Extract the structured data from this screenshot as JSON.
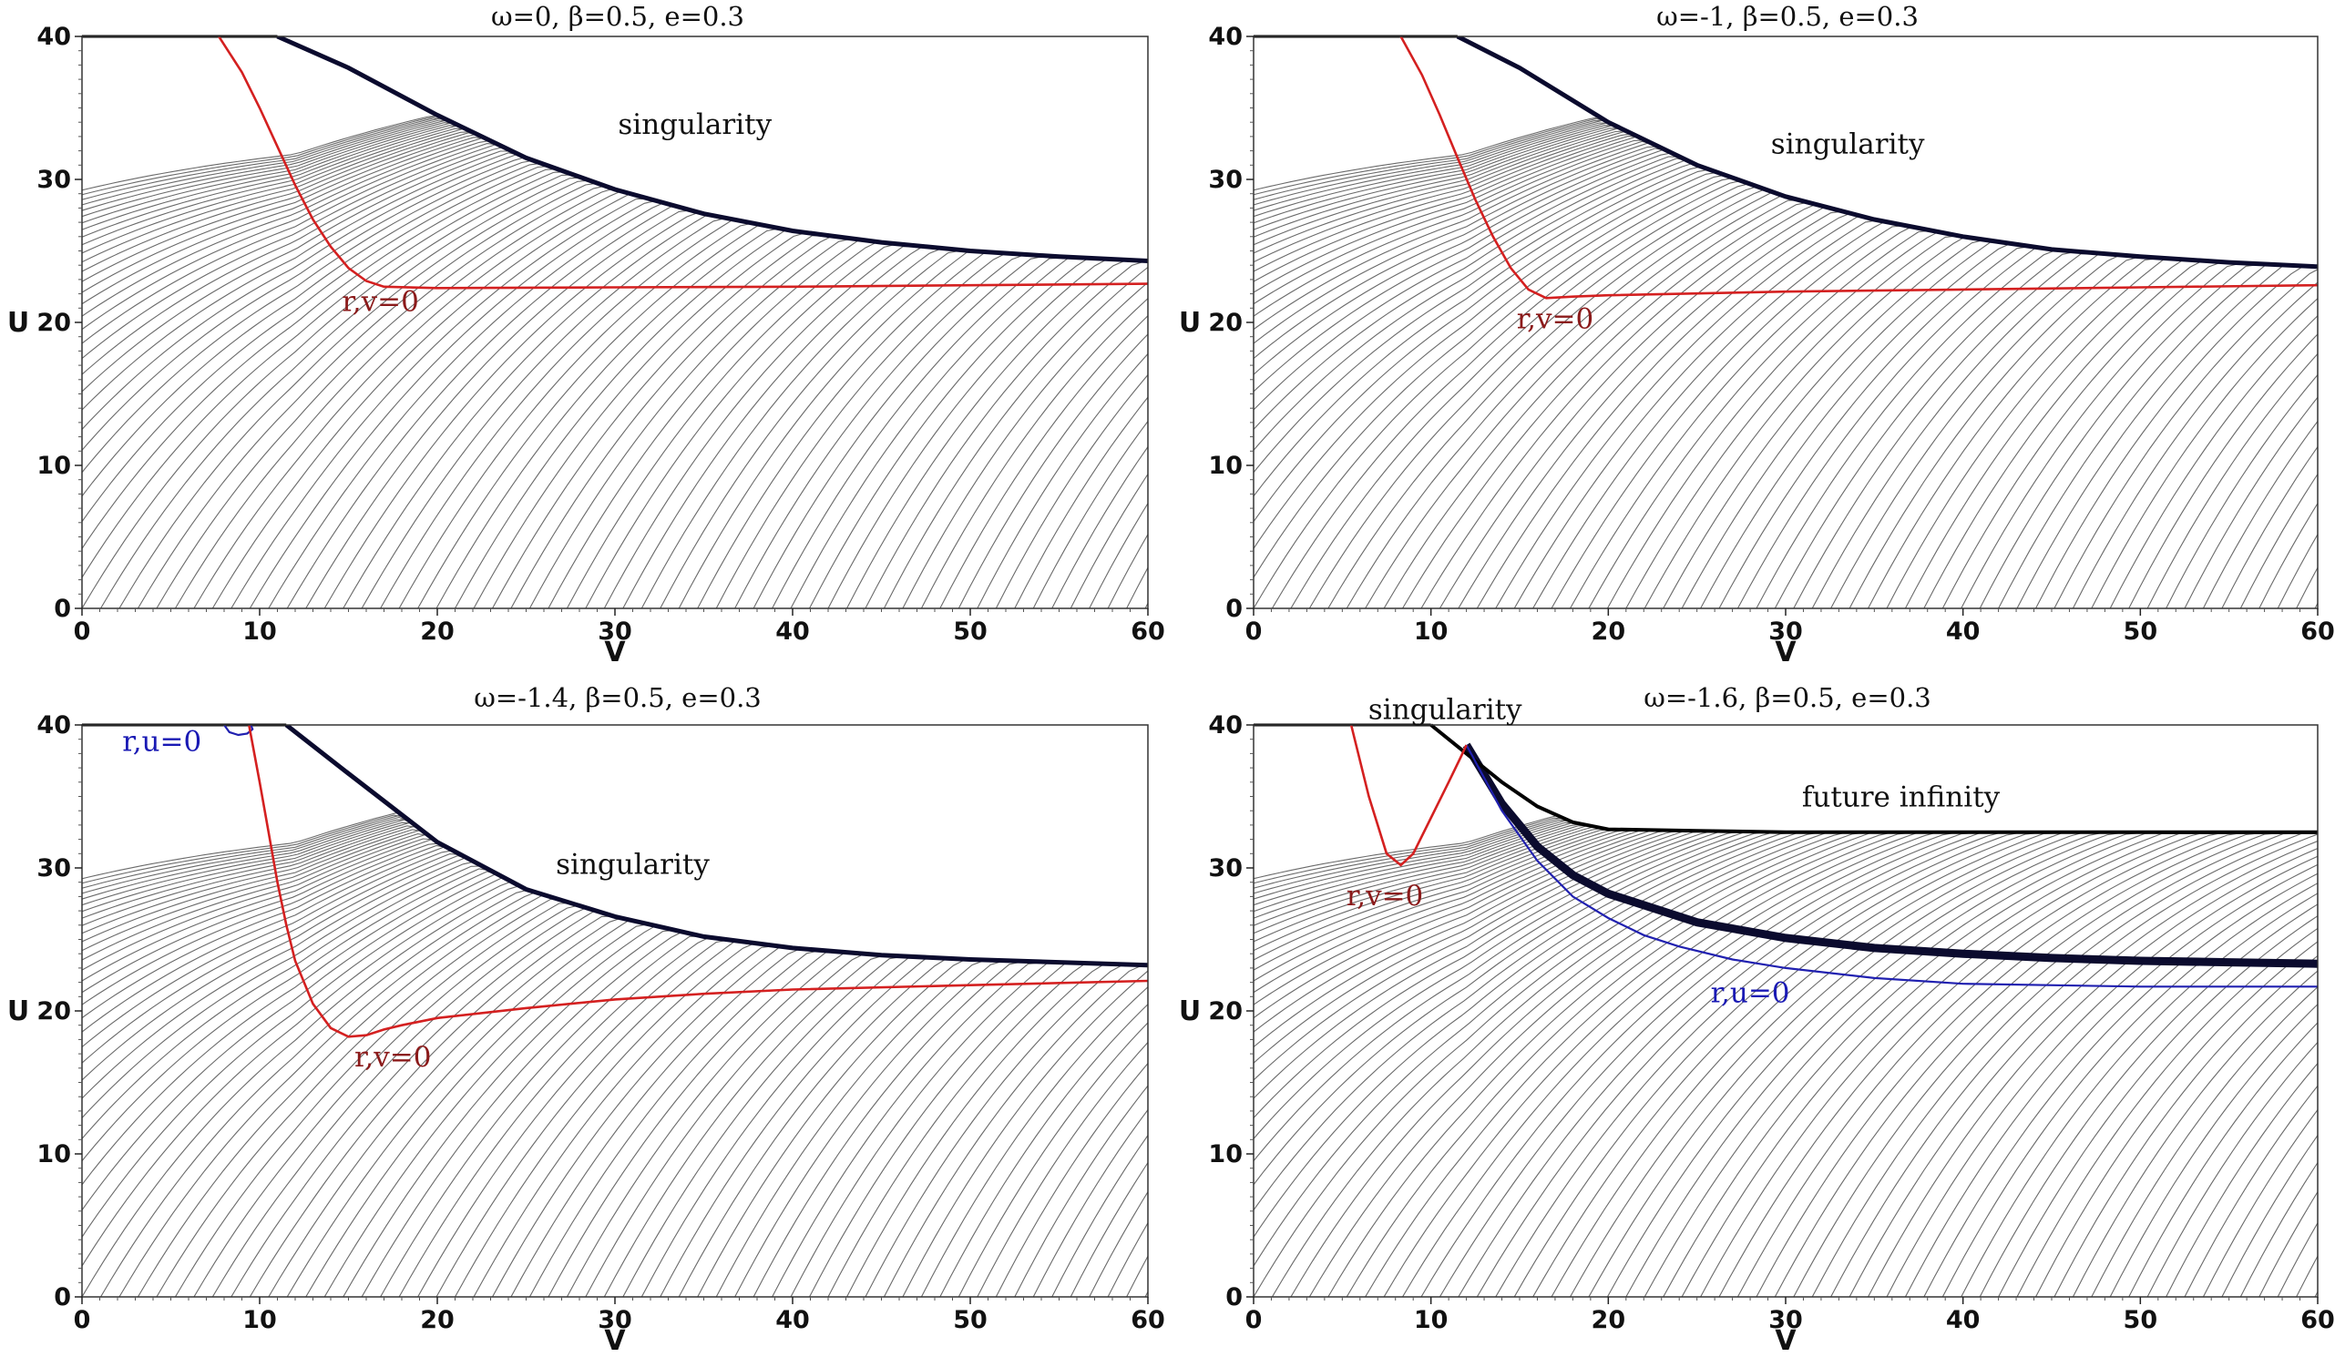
{
  "chart_data": [
    {
      "type": "line",
      "title": "ω=0,   β=0.5,   e=0.3",
      "omega": 0,
      "beta": 0.5,
      "e": 0.3,
      "xlabel": "V",
      "ylabel": "U",
      "xlim": [
        0,
        60
      ],
      "ylim": [
        0,
        40
      ],
      "xticks": [
        0,
        10,
        20,
        30,
        40,
        50,
        60
      ],
      "yticks": [
        0,
        10,
        20,
        30,
        40
      ],
      "singularity": {
        "x": [
          11,
          15,
          20,
          25,
          30,
          35,
          40,
          45,
          50,
          55,
          60
        ],
        "y": [
          40,
          37.8,
          34.5,
          31.5,
          29.3,
          27.6,
          26.4,
          25.6,
          25,
          24.6,
          24.3
        ]
      },
      "rv_curve": {
        "x": [
          7.7,
          9,
          10,
          11,
          12,
          13,
          14,
          15,
          16,
          17,
          20,
          30,
          40,
          50,
          60
        ],
        "y": [
          40,
          37.5,
          35,
          32.3,
          29.6,
          27.2,
          25.3,
          23.8,
          22.9,
          22.5,
          22.4,
          22.45,
          22.5,
          22.6,
          22.7
        ]
      },
      "annotations": [
        {
          "text": "singularity",
          "x": 34.5,
          "y": 33.2,
          "color": "#111111"
        },
        {
          "text": "r,v=0",
          "x": 16.8,
          "y": 20.8,
          "color": "#8b1a1a"
        }
      ]
    },
    {
      "type": "line",
      "title": "ω=-1,   β=0.5,   e=0.3",
      "omega": -1,
      "beta": 0.5,
      "e": 0.3,
      "xlabel": "V",
      "ylabel": "U",
      "xlim": [
        0,
        60
      ],
      "ylim": [
        0,
        40
      ],
      "xticks": [
        0,
        10,
        20,
        30,
        40,
        50,
        60
      ],
      "yticks": [
        0,
        10,
        20,
        30,
        40
      ],
      "singularity": {
        "x": [
          11.5,
          15,
          20,
          25,
          30,
          35,
          40,
          45,
          50,
          55,
          60
        ],
        "y": [
          40,
          37.8,
          34,
          31,
          28.8,
          27.2,
          26,
          25.1,
          24.6,
          24.2,
          23.9
        ]
      },
      "rv_curve": {
        "x": [
          8.3,
          9.5,
          10.5,
          11.5,
          12.5,
          13.5,
          14.5,
          15.5,
          16.5,
          18,
          20,
          30,
          40,
          50,
          60
        ],
        "y": [
          40,
          37.3,
          34.5,
          31.5,
          28.6,
          26,
          23.8,
          22.3,
          21.7,
          21.8,
          21.9,
          22.15,
          22.3,
          22.45,
          22.6
        ]
      },
      "annotations": [
        {
          "text": "singularity",
          "x": 33.5,
          "y": 31.8,
          "color": "#111111"
        },
        {
          "text": "r,v=0",
          "x": 17,
          "y": 19.6,
          "color": "#8b1a1a"
        }
      ]
    },
    {
      "type": "line",
      "title": "ω=-1.4,   β=0.5,   e=0.3",
      "omega": -1.4,
      "beta": 0.5,
      "e": 0.3,
      "xlabel": "V",
      "ylabel": "U",
      "xlim": [
        0,
        60
      ],
      "ylim": [
        0,
        40
      ],
      "xticks": [
        0,
        10,
        20,
        30,
        40,
        50,
        60
      ],
      "yticks": [
        0,
        10,
        20,
        30,
        40
      ],
      "singularity": {
        "x": [
          11.5,
          15,
          20,
          25,
          30,
          35,
          40,
          45,
          50,
          55,
          60
        ],
        "y": [
          40,
          36.6,
          31.8,
          28.5,
          26.6,
          25.2,
          24.4,
          23.9,
          23.6,
          23.4,
          23.2
        ]
      },
      "rv_curve": {
        "x": [
          9.4,
          10,
          10.5,
          11,
          11.5,
          12,
          13,
          14,
          15,
          16,
          17,
          18,
          20,
          25,
          30,
          35,
          40,
          50,
          60
        ],
        "y": [
          40,
          36,
          32.5,
          29,
          26,
          23.5,
          20.5,
          18.8,
          18.2,
          18.3,
          18.7,
          19,
          19.5,
          20.2,
          20.8,
          21.2,
          21.5,
          21.8,
          22.1
        ]
      },
      "ru_curve": {
        "x": [
          8,
          8.3,
          8.8,
          9.3,
          9.6,
          9.5
        ],
        "y": [
          40,
          39.5,
          39.3,
          39.4,
          39.7,
          40
        ]
      },
      "annotations": [
        {
          "text": "singularity",
          "x": 31,
          "y": 29.6,
          "color": "#111111"
        },
        {
          "text": "r,u=0",
          "x": 4.5,
          "y": 38.2,
          "color": "#1a1ab4"
        },
        {
          "text": "r,v=0",
          "x": 17.5,
          "y": 16.1,
          "color": "#8b1a1a"
        }
      ]
    },
    {
      "type": "line",
      "title": "ω=-1.6,   β=0.5,   e=0.3",
      "omega": -1.6,
      "beta": 0.5,
      "e": 0.3,
      "xlabel": "V",
      "ylabel": "U",
      "xlim": [
        0,
        60
      ],
      "ylim": [
        0,
        40
      ],
      "xticks": [
        0,
        10,
        20,
        30,
        40,
        50,
        60
      ],
      "yticks": [
        0,
        10,
        20,
        30,
        40
      ],
      "future_infinity": {
        "x": [
          10,
          12,
          14,
          16,
          18,
          20,
          25,
          30,
          40,
          50,
          60
        ],
        "y": [
          40,
          38,
          36,
          34.3,
          33.2,
          32.7,
          32.6,
          32.5,
          32.5,
          32.5,
          32.5
        ]
      },
      "singularity": {
        "x": [
          12,
          14,
          16,
          18,
          20,
          25,
          30,
          35,
          40,
          45,
          50,
          55,
          60
        ],
        "y": [
          38.6,
          34.5,
          31.5,
          29.5,
          28.2,
          26.2,
          25.1,
          24.4,
          24,
          23.7,
          23.5,
          23.4,
          23.3
        ]
      },
      "rv_curve": {
        "x": [
          5.5,
          6.5,
          7.5,
          8.3,
          9,
          10,
          11,
          11.7,
          12
        ],
        "y": [
          40,
          35,
          31,
          30.2,
          31,
          33.5,
          36,
          37.8,
          38.6
        ]
      },
      "ru_curve": {
        "x": [
          12,
          14,
          16,
          18,
          20,
          22,
          24,
          27,
          30,
          35,
          40,
          50,
          60
        ],
        "y": [
          38.6,
          34,
          30.5,
          28,
          26.5,
          25.3,
          24.5,
          23.6,
          23,
          22.3,
          21.9,
          21.7,
          21.7
        ]
      },
      "annotations": [
        {
          "text": "singularity",
          "x": 10.8,
          "y": 40.4,
          "color": "#111111"
        },
        {
          "text": "future infinity",
          "x": 36.5,
          "y": 34.3,
          "color": "#111111"
        },
        {
          "text": "r,v=0",
          "x": 7.4,
          "y": 27.4,
          "color": "#8b1a1a"
        },
        {
          "text": "r,u=0",
          "x": 28,
          "y": 20.6,
          "color": "#1a1ab4"
        }
      ]
    }
  ]
}
